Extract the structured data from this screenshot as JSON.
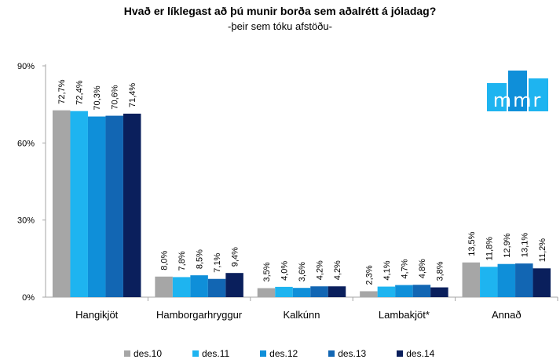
{
  "title": "Hvað er líklegast að þú munir borða sem aðalrétt á jóladag?",
  "subtitle": "-þeir sem tóku afstöðu-",
  "logo_text": "mmr",
  "chart_data": {
    "type": "bar",
    "categories": [
      "Hangikjöt",
      "Hamborgarhryggur",
      "Kalkúnn",
      "Lambakjöt*",
      "Annað"
    ],
    "series": [
      {
        "name": "des.10",
        "color": "#a6a6a6",
        "values": [
          72.7,
          8.0,
          3.5,
          2.3,
          13.5
        ],
        "labels": [
          "72,7%",
          "8,0%",
          "3,5%",
          "2,3%",
          "13,5%"
        ]
      },
      {
        "name": "des.11",
        "color": "#1eb4f0",
        "values": [
          72.4,
          7.8,
          4.0,
          4.1,
          11.8
        ],
        "labels": [
          "72,4%",
          "7,8%",
          "4,0%",
          "4,1%",
          "11,8%"
        ]
      },
      {
        "name": "des.12",
        "color": "#0f8fd9",
        "values": [
          70.3,
          8.5,
          3.6,
          4.7,
          12.9
        ],
        "labels": [
          "70,3%",
          "8,5%",
          "3,6%",
          "4,7%",
          "12,9%"
        ]
      },
      {
        "name": "des.13",
        "color": "#1266b3",
        "values": [
          70.6,
          7.1,
          4.2,
          4.8,
          13.1
        ],
        "labels": [
          "70,6%",
          "7,1%",
          "4,2%",
          "4,8%",
          "13,1%"
        ]
      },
      {
        "name": "des.14",
        "color": "#0a1f5c",
        "values": [
          71.4,
          9.4,
          4.2,
          3.8,
          11.2
        ],
        "labels": [
          "71,4%",
          "9,4%",
          "4,2%",
          "3,8%",
          "11,2%"
        ]
      }
    ],
    "yticks": [
      "0%",
      "30%",
      "60%",
      "90%"
    ],
    "ytick_values": [
      0,
      30,
      60,
      90
    ],
    "ylim": [
      0,
      90
    ],
    "grid": false,
    "legend_position": "bottom"
  },
  "logo_colors": [
    "#1eb4f0",
    "#0f8fd9",
    "#1eb4f0"
  ]
}
